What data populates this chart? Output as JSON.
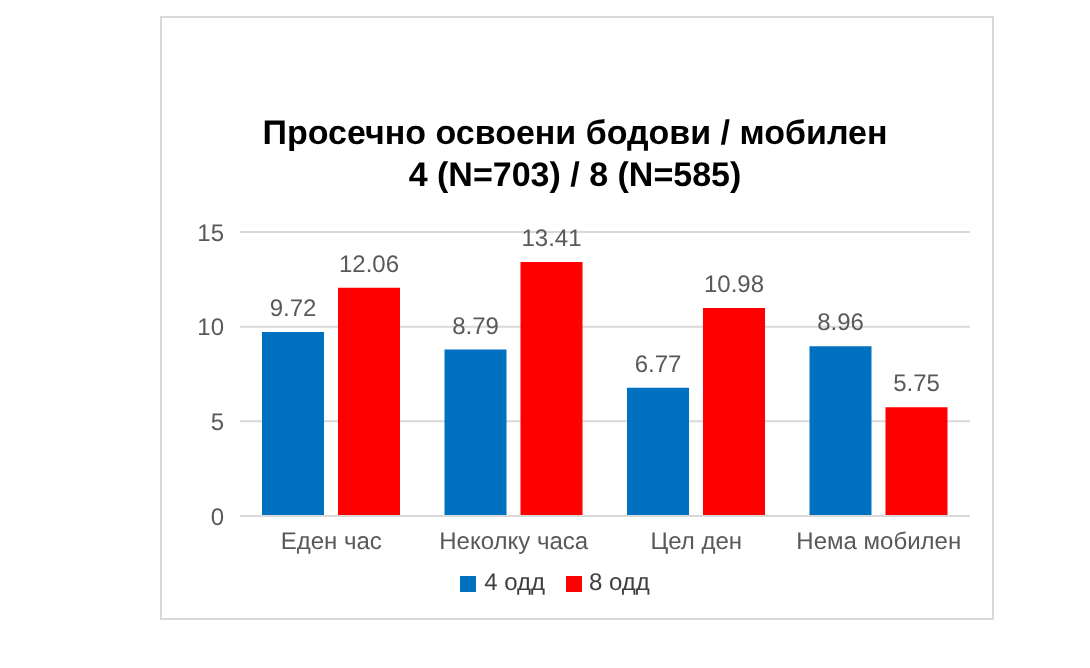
{
  "chart_data": {
    "type": "bar",
    "title": "Просечно освоени бодови / мобилен",
    "subtitle": "4 (N=703) / 8 (N=585)",
    "categories": [
      "Еден час",
      "Неколку часа",
      "Цел ден",
      "Нема мобилен"
    ],
    "series": [
      {
        "name": "4 одд",
        "color": "#0070c0",
        "values": [
          9.72,
          8.79,
          6.77,
          8.96
        ]
      },
      {
        "name": "8 одд",
        "color": "#ff0000",
        "values": [
          12.06,
          13.41,
          10.98,
          5.75
        ]
      }
    ],
    "ylim": [
      0,
      15
    ],
    "yticks": [
      0,
      5,
      10,
      15
    ],
    "grid": "y",
    "legend": "bottom",
    "data_labels": true
  }
}
